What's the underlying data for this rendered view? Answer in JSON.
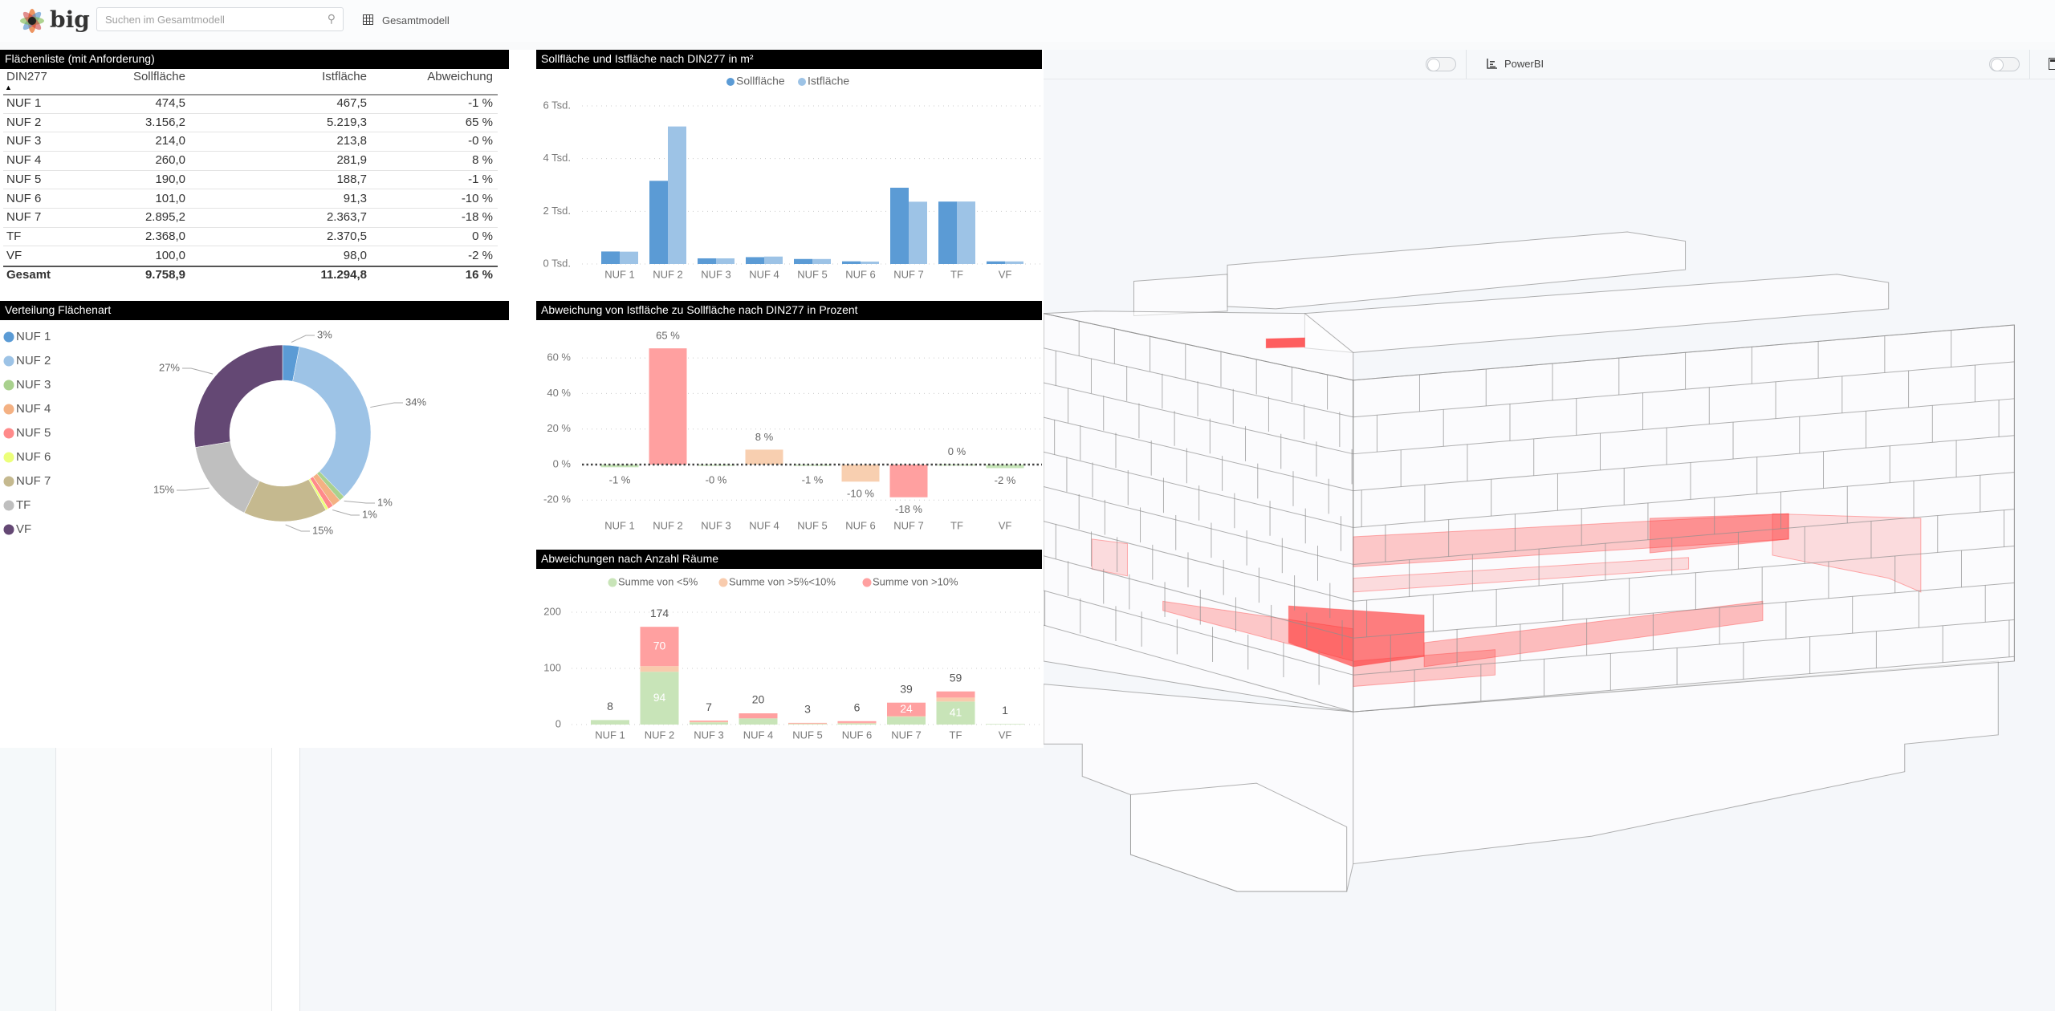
{
  "header": {
    "logo_text": "big",
    "search_placeholder": "Suchen im Gesamtmodell",
    "model_label": "Gesamtmodell",
    "icons": {
      "search": "search-icon",
      "model": "grid-table-icon"
    }
  },
  "toolbar": {
    "powerbi_label": "PowerBI",
    "icons": {
      "powerbi": "bar-chart-icon",
      "end": "calculator-icon"
    }
  },
  "table": {
    "title": "Flächenliste (mit Anforderung)",
    "columns": [
      "DIN277",
      "Sollfläche",
      "Istfläche",
      "Abweichung"
    ],
    "sort_indicator": "▲",
    "rows": [
      [
        "NUF 1",
        "474,5",
        "467,5",
        "-1 %"
      ],
      [
        "NUF 2",
        "3.156,2",
        "5.219,3",
        "65 %"
      ],
      [
        "NUF 3",
        "214,0",
        "213,8",
        "-0 %"
      ],
      [
        "NUF 4",
        "260,0",
        "281,9",
        "8 %"
      ],
      [
        "NUF 5",
        "190,0",
        "188,7",
        "-1 %"
      ],
      [
        "NUF 6",
        "101,0",
        "91,3",
        "-10 %"
      ],
      [
        "NUF 7",
        "2.895,2",
        "2.363,7",
        "-18 %"
      ],
      [
        "TF",
        "2.368,0",
        "2.370,5",
        "0 %"
      ],
      [
        "VF",
        "100,0",
        "98,0",
        "-2 %"
      ]
    ],
    "total": [
      "Gesamt",
      "9.758,9",
      "11.294,8",
      "16 %"
    ]
  },
  "chart_data": [
    {
      "type": "bar",
      "title": "Sollfläche und Istfläche nach DIN277 in m²",
      "categories": [
        "NUF 1",
        "NUF 2",
        "NUF 3",
        "NUF 4",
        "NUF 5",
        "NUF 6",
        "NUF 7",
        "TF",
        "VF"
      ],
      "series": [
        {
          "name": "Sollfläche",
          "color": "#5b9bd5",
          "values": [
            474.5,
            3156.2,
            214.0,
            260.0,
            190.0,
            101.0,
            2895.2,
            2368.0,
            100.0
          ]
        },
        {
          "name": "Istfläche",
          "color": "#9dc3e6",
          "values": [
            467.5,
            5219.3,
            213.8,
            281.9,
            188.7,
            91.3,
            2363.7,
            2370.5,
            98.0
          ]
        }
      ],
      "yticks": [
        0,
        2000,
        4000,
        6000
      ],
      "ytick_labels": [
        "0 Tsd.",
        "2 Tsd.",
        "4 Tsd.",
        "6 Tsd."
      ],
      "ylim": [
        0,
        6000
      ],
      "grid": true,
      "legend": "top-center"
    },
    {
      "type": "pie",
      "donut": true,
      "title": "Verteilung Flächenart",
      "categories": [
        "NUF 1",
        "NUF 2",
        "NUF 3",
        "NUF 4",
        "NUF 5",
        "NUF 6",
        "NUF 7",
        "TF",
        "VF"
      ],
      "values": [
        3,
        34,
        1,
        1.5,
        1,
        0.5,
        15,
        15,
        27
      ],
      "labels": [
        "3%",
        "34%",
        "1%",
        "",
        "1%",
        "",
        "15%",
        "15%",
        "27%"
      ],
      "colors": [
        "#5b9bd5",
        "#9dc3e6",
        "#a9d18e",
        "#f4b183",
        "#ff8a8a",
        "#ecff7a",
        "#c5b98f",
        "#bfbfbf",
        "#644874"
      ],
      "legend": "left"
    },
    {
      "type": "bar",
      "title": "Abweichung von Istfläche zu Sollfläche nach DIN277 in Prozent",
      "categories": [
        "NUF 1",
        "NUF 2",
        "NUF 3",
        "NUF 4",
        "NUF 5",
        "NUF 6",
        "NUF 7",
        "TF",
        "VF"
      ],
      "values": [
        -1.5,
        65.4,
        -0.1,
        8.4,
        -0.7,
        -9.6,
        -18.4,
        0.1,
        -2.0
      ],
      "labels": [
        "-1 %",
        "65 %",
        "-0 %",
        "8 %",
        "-1 %",
        "-10 %",
        "-18 %",
        "0 %",
        "-2 %"
      ],
      "colors": [
        "#c6e5b8",
        "#ffa0a0",
        "#c6e5b8",
        "#f8cfb0",
        "#c6e5b8",
        "#f8cfb0",
        "#ffa0a0",
        "#c6e5b8",
        "#c6e5b8"
      ],
      "yticks": [
        -20,
        0,
        20,
        40,
        60
      ],
      "ytick_labels": [
        "-20 %",
        "0 %",
        "20 %",
        "40 %",
        "60 %"
      ],
      "ylim": [
        -25,
        70
      ],
      "grid": true,
      "zero_line": "dotted"
    },
    {
      "type": "bar",
      "stacked": true,
      "title": "Abweichungen nach Anzahl Räume",
      "categories": [
        "NUF 1",
        "NUF 2",
        "NUF 3",
        "NUF 4",
        "NUF 5",
        "NUF 6",
        "NUF 7",
        "TF",
        "VF"
      ],
      "series": [
        {
          "name": "Summe von <5%",
          "color": "#c8e4b8",
          "values": [
            8,
            94,
            4,
            11,
            1,
            2,
            14,
            41,
            1
          ],
          "labels": [
            "",
            "94",
            "",
            "",
            "",
            "",
            "",
            "41",
            ""
          ]
        },
        {
          "name": "Summe von >5%<10%",
          "color": "#f8cbad",
          "values": [
            0,
            10,
            1,
            0,
            1,
            1,
            1,
            7,
            0
          ],
          "labels": [
            "",
            "",
            "",
            "",
            "",
            "",
            "",
            "",
            ""
          ]
        },
        {
          "name": "Summe von >10%",
          "color": "#ffa0a0",
          "values": [
            0,
            70,
            2,
            9,
            1,
            3,
            24,
            11,
            0
          ],
          "labels": [
            "",
            "70",
            "",
            "",
            "",
            "",
            "24",
            "",
            ""
          ]
        }
      ],
      "totals": [
        "8",
        "174",
        "7",
        "20",
        "3",
        "6",
        "39",
        "59",
        "1"
      ],
      "yticks": [
        0,
        100,
        200
      ],
      "ytick_labels": [
        "0",
        "100",
        "200"
      ],
      "ylim": [
        0,
        200
      ],
      "grid": true,
      "legend": "top-center"
    }
  ]
}
